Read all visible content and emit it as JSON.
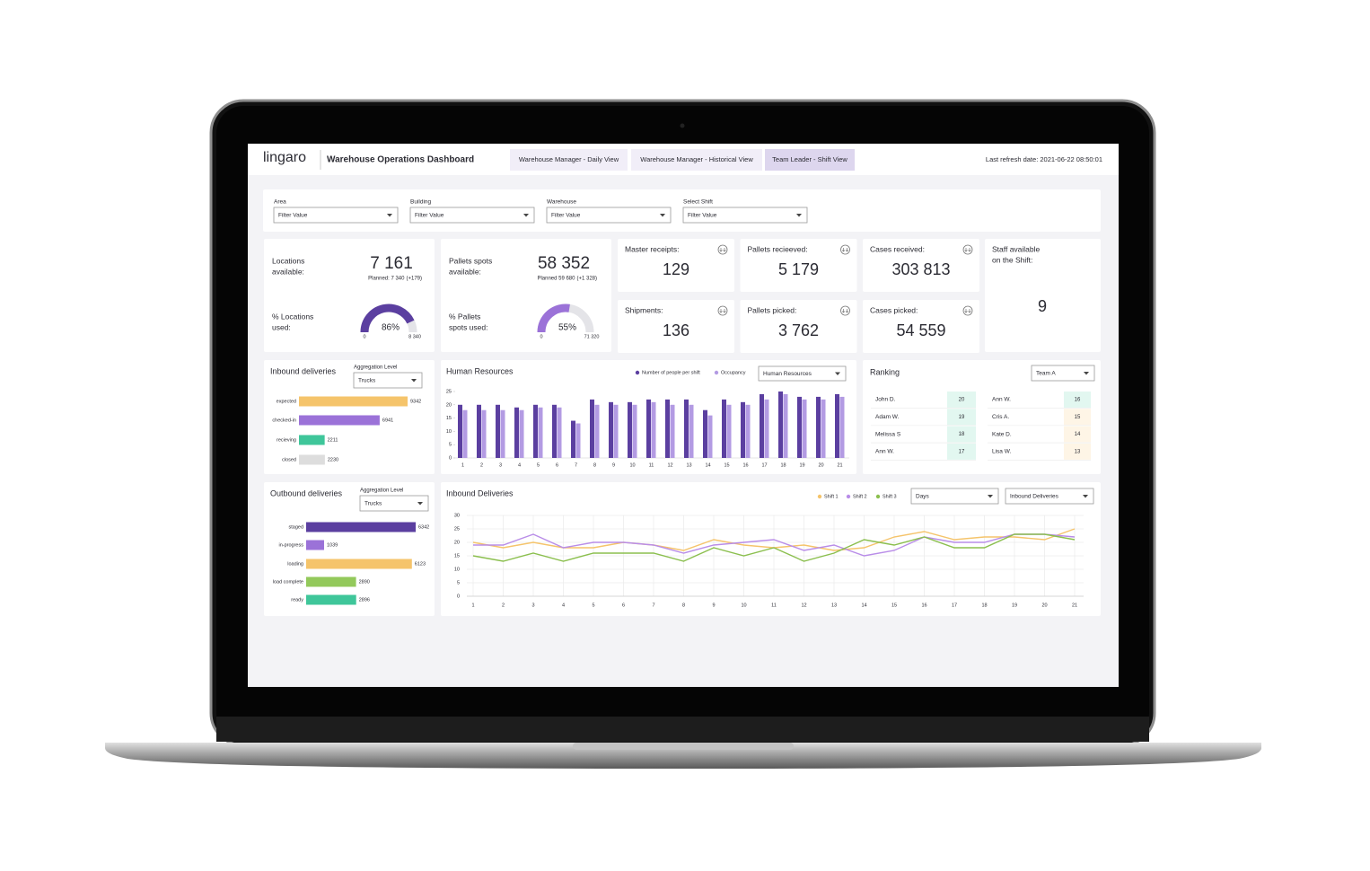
{
  "header": {
    "logo": "lingaro",
    "title": "Warehouse Operations Dashboard",
    "tabs": [
      "Warehouse Manager - Daily View",
      "Warehouse Manager - Historical View",
      "Team Leader - Shift View"
    ],
    "refresh": "Last refresh date: 2021-06-22 08:50:01"
  },
  "filters": [
    {
      "label": "Area",
      "value": "Filter Value"
    },
    {
      "label": "Building",
      "value": "Filter Value"
    },
    {
      "label": "Warehouse",
      "value": "Filter Value"
    },
    {
      "label": "Select Shift",
      "value": "Filter Value"
    }
  ],
  "capacity": [
    {
      "label": [
        "Locations",
        "available:"
      ],
      "value": "7 161",
      "planned": "Planned: 7 340",
      "delta": "(+179)",
      "gauge": {
        "label": [
          "% Locations",
          "used:"
        ],
        "value": 86,
        "value_label": "86%",
        "min": "0",
        "max": "8 340",
        "color": "#5b3fa0"
      }
    },
    {
      "label": [
        "Pallets spots",
        "available:"
      ],
      "value": "58 352",
      "planned": "Planned 59 680",
      "delta": "(+1 328)",
      "gauge": {
        "label": [
          "% Pallets",
          "spots used:"
        ],
        "value": 55,
        "value_label": "55%",
        "min": "0",
        "max": "71 320",
        "color": "#9b72d8"
      }
    }
  ],
  "kpis": [
    {
      "label": "Master receipts:",
      "value": "129"
    },
    {
      "label": "Pallets recieeved:",
      "value": "5 179"
    },
    {
      "label": "Cases received:",
      "value": "303 813"
    },
    {
      "label": "Shipments:",
      "value": "136"
    },
    {
      "label": "Pallets picked:",
      "value": "3 762"
    },
    {
      "label": "Cases picked:",
      "value": "54 559"
    }
  ],
  "staff": {
    "label": [
      "Staff available",
      "on the Shift:"
    ],
    "value": "9"
  },
  "inbound": {
    "title": "Inbound deliveries",
    "aggregation_label": "Aggregation Level",
    "aggregation": "Trucks",
    "chart_data": {
      "type": "hbar",
      "categories": [
        "expected",
        "checked-in",
        "recieving",
        "closed"
      ],
      "values": [
        9342,
        6941,
        2211,
        2230
      ],
      "colors": [
        "#f5c46b",
        "#9b72d8",
        "#3fc69a",
        "#dddddd"
      ]
    }
  },
  "outbound": {
    "title": "Outbound deliveries",
    "aggregation_label": "Aggregation Level",
    "aggregation": "Trucks",
    "chart_data": {
      "type": "hbar",
      "categories": [
        "staged",
        "in-progress",
        "loading",
        "load complete",
        "ready"
      ],
      "values": [
        6342,
        1039,
        6123,
        2890,
        2896
      ],
      "colors": [
        "#5b3fa0",
        "#9b72d8",
        "#f5c46b",
        "#93c95b",
        "#3fc69a"
      ]
    }
  },
  "human_resources": {
    "title": "Human Resources",
    "dropdown": "Human Resources",
    "chart_data": {
      "type": "bar",
      "categories": [
        "1",
        "2",
        "3",
        "4",
        "5",
        "6",
        "7",
        "8",
        "9",
        "10",
        "11",
        "12",
        "13",
        "14",
        "15",
        "16",
        "17",
        "18",
        "19",
        "20",
        "21"
      ],
      "series": [
        {
          "name": "Number of people per shift",
          "color": "#5b3fa0",
          "values": [
            20,
            20,
            20,
            19,
            20,
            20,
            14,
            22,
            21,
            21,
            22,
            22,
            22,
            18,
            22,
            21,
            24,
            25,
            23,
            23,
            24
          ]
        },
        {
          "name": "Occupancy",
          "color": "#b39be3",
          "values": [
            18,
            18,
            18,
            18,
            19,
            19,
            13,
            20,
            20,
            20,
            21,
            20,
            20,
            16,
            20,
            20,
            22,
            24,
            22,
            22,
            23
          ]
        }
      ],
      "ylim": [
        0,
        25
      ],
      "yticks": [
        0,
        5,
        10,
        15,
        20,
        25
      ],
      "grid": false
    }
  },
  "ranking": {
    "title": "Ranking",
    "dropdown": "Team A",
    "columns": [
      [
        {
          "name": "John D.",
          "score": 20,
          "color": "#3fc69a"
        },
        {
          "name": "Adam W.",
          "score": 19,
          "color": "#3fc69a"
        },
        {
          "name": "Melissa S",
          "score": 18,
          "color": "#3fc69a"
        },
        {
          "name": "Ann W.",
          "score": 17,
          "color": "#3fc69a"
        }
      ],
      [
        {
          "name": "Ann W.",
          "score": 16,
          "color": "#3fc69a"
        },
        {
          "name": "Cris A.",
          "score": 15,
          "color": "#f5b95a"
        },
        {
          "name": "Kate D.",
          "score": 14,
          "color": "#f5b95a"
        },
        {
          "name": "Lisa W.",
          "score": 13,
          "color": "#f5b95a"
        }
      ]
    ]
  },
  "inbound_trend": {
    "title": "Inbound Deliveries",
    "dropdowns": [
      "Days",
      "Inbound Deliveries"
    ],
    "chart_data": {
      "type": "line",
      "x": [
        1,
        2,
        3,
        4,
        5,
        6,
        7,
        8,
        9,
        10,
        11,
        12,
        13,
        14,
        15,
        16,
        17,
        18,
        19,
        20,
        21
      ],
      "series": [
        {
          "name": "Shift 1",
          "color": "#f5c46b",
          "values": [
            20,
            18,
            20,
            18,
            18,
            20,
            19,
            17,
            21,
            19,
            18,
            19,
            17,
            18,
            22,
            24,
            21,
            22,
            22,
            21,
            25
          ]
        },
        {
          "name": "Shift 2",
          "color": "#b98de8",
          "values": [
            19,
            19,
            23,
            18,
            20,
            20,
            19,
            16,
            19,
            20,
            21,
            17,
            19,
            15,
            17,
            22,
            20,
            20,
            23,
            23,
            22
          ]
        },
        {
          "name": "Shift 3",
          "color": "#8bbf4e",
          "values": [
            15,
            13,
            16,
            13,
            16,
            16,
            16,
            13,
            18,
            15,
            18,
            13,
            16,
            21,
            19,
            22,
            18,
            18,
            23,
            23,
            21
          ]
        }
      ],
      "xlim": [
        1,
        21
      ],
      "xticks": [
        1,
        2,
        3,
        4,
        5,
        6,
        7,
        8,
        9,
        10,
        11,
        12,
        13,
        14,
        15,
        16,
        17,
        18,
        19,
        20,
        21
      ],
      "ylim": [
        0,
        30
      ],
      "yticks": [
        0,
        5,
        10,
        15,
        20,
        25,
        30
      ],
      "grid": true
    }
  }
}
